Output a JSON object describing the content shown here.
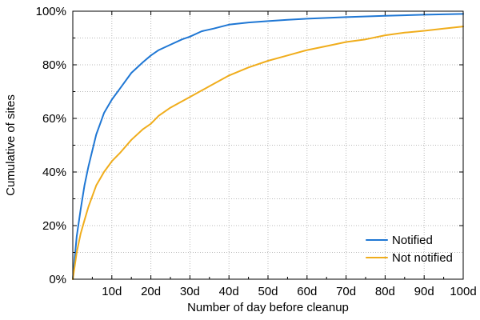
{
  "chart_data": {
    "type": "line",
    "xlabel": "Number of day before cleanup",
    "ylabel": "Cumulative of sites",
    "xlim": [
      0,
      100
    ],
    "ylim": [
      0,
      100
    ],
    "x_ticks": [
      10,
      20,
      30,
      40,
      50,
      60,
      70,
      80,
      90,
      100
    ],
    "x_tick_labels": [
      "10d",
      "20d",
      "30d",
      "40d",
      "50d",
      "60d",
      "70d",
      "80d",
      "90d",
      "100d"
    ],
    "y_ticks": [
      0,
      20,
      40,
      60,
      80,
      100
    ],
    "y_tick_labels": [
      "0%",
      "20%",
      "40%",
      "60%",
      "80%",
      "100%"
    ],
    "grid": true,
    "legend_position": "bottom-right",
    "series": [
      {
        "name": "Notified",
        "color": "#1f77d4",
        "x": [
          0,
          1,
          2,
          3,
          4,
          5,
          6,
          7,
          8,
          10,
          12,
          15,
          18,
          20,
          22,
          25,
          28,
          30,
          33,
          36,
          40,
          45,
          50,
          55,
          60,
          70,
          80,
          90,
          100
        ],
        "y": [
          0,
          16,
          26,
          35,
          42,
          48,
          54,
          58,
          62,
          67,
          71,
          77,
          81,
          83.5,
          85.5,
          87.5,
          89.5,
          90.5,
          92.5,
          93.5,
          95,
          95.8,
          96.3,
          96.8,
          97.2,
          97.8,
          98.3,
          98.7,
          99
        ]
      },
      {
        "name": "Not notified",
        "color": "#f0ad1c",
        "x": [
          0,
          1,
          2,
          3,
          4,
          5,
          6,
          8,
          10,
          12,
          15,
          18,
          20,
          22,
          25,
          30,
          35,
          40,
          45,
          50,
          55,
          60,
          65,
          70,
          75,
          80,
          85,
          90,
          95,
          100
        ],
        "y": [
          0,
          10,
          17,
          22,
          27,
          31,
          35,
          40,
          44,
          47,
          52,
          56,
          58,
          61,
          64,
          68,
          72,
          76,
          79,
          81.5,
          83.5,
          85.5,
          87,
          88.5,
          89.5,
          91,
          92,
          92.7,
          93.5,
          94.3
        ]
      }
    ]
  }
}
